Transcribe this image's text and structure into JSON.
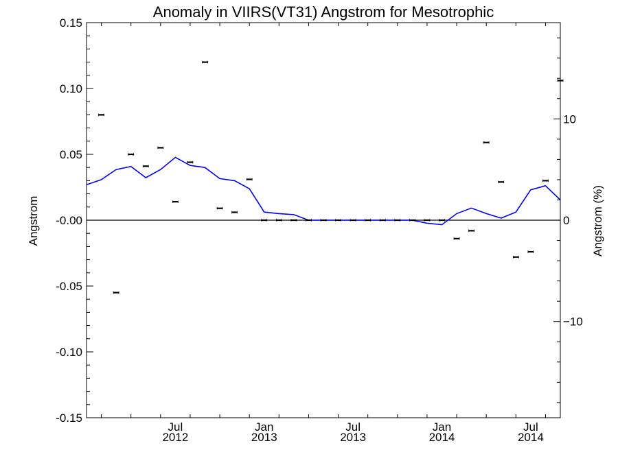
{
  "chart_data": {
    "type": "scatter",
    "title": "Anomaly in VIIRS(VT31) Angstrom for Mesotrophic",
    "ylabel": "Angstrom",
    "y2label": "Angstrom (%)",
    "ylim": [
      -0.15,
      0.15
    ],
    "y2lim": [
      -19.5,
      19.5
    ],
    "yticks": [
      "0.15",
      "0.10",
      "0.05",
      "-0.00",
      "-0.05",
      "-0.10",
      "-0.15"
    ],
    "y2ticks": [
      "10",
      "0",
      "-10"
    ],
    "xticks": [
      {
        "month": "Jul",
        "year": "2012"
      },
      {
        "month": "Jan",
        "year": "2013"
      },
      {
        "month": "Jul",
        "year": "2013"
      },
      {
        "month": "Jan",
        "year": "2014"
      },
      {
        "month": "Jul",
        "year": "2014"
      }
    ],
    "xrange": [
      "2012-01",
      "2014-09"
    ],
    "zero_line": true,
    "series": [
      {
        "kind": "points",
        "style": "black short horizontal bars with error ticks",
        "x": [
          "2012-02",
          "2012-03",
          "2012-04",
          "2012-05",
          "2012-06",
          "2012-07",
          "2012-08",
          "2012-09",
          "2012-10",
          "2012-11",
          "2012-12",
          "2013-01",
          "2013-02",
          "2013-03",
          "2013-04",
          "2013-05",
          "2013-06",
          "2013-07",
          "2013-08",
          "2013-09",
          "2013-10",
          "2013-11",
          "2013-12",
          "2014-01",
          "2014-02",
          "2014-03",
          "2014-04",
          "2014-05",
          "2014-06",
          "2014-07",
          "2014-08",
          "2014-09"
        ],
        "values": [
          0.08,
          -0.055,
          0.05,
          0.041,
          0.055,
          0.014,
          0.044,
          0.12,
          0.009,
          0.006,
          0.031,
          0.0,
          0.0,
          0.0,
          0.0,
          0.0,
          0.0,
          0.0,
          0.0,
          0.0,
          0.0,
          0.0,
          0.0,
          0.0,
          -0.014,
          -0.008,
          0.059,
          0.029,
          -0.028,
          -0.024,
          0.03,
          0.106
        ]
      },
      {
        "kind": "line",
        "color": "#0000ff",
        "axis": "right",
        "x": [
          "2012-01",
          "2012-02",
          "2012-03",
          "2012-04",
          "2012-05",
          "2012-06",
          "2012-07",
          "2012-08",
          "2012-09",
          "2012-10",
          "2012-11",
          "2012-12",
          "2013-01",
          "2013-02",
          "2013-03",
          "2013-04",
          "2013-05",
          "2013-06",
          "2013-07",
          "2013-08",
          "2013-09",
          "2013-10",
          "2013-11",
          "2013-12",
          "2014-01",
          "2014-02",
          "2014-03",
          "2014-04",
          "2014-05",
          "2014-06",
          "2014-07",
          "2014-08",
          "2014-09"
        ],
        "values": [
          3.5,
          4.0,
          5.0,
          5.3,
          4.2,
          5.0,
          6.2,
          5.4,
          5.2,
          4.1,
          3.9,
          3.1,
          0.8,
          0.65,
          0.55,
          0.0,
          0.0,
          0.0,
          0.0,
          0.0,
          0.0,
          0.0,
          0.0,
          -0.3,
          -0.45,
          0.65,
          1.2,
          0.65,
          0.2,
          0.8,
          3.0,
          3.4,
          2.0
        ]
      }
    ]
  }
}
